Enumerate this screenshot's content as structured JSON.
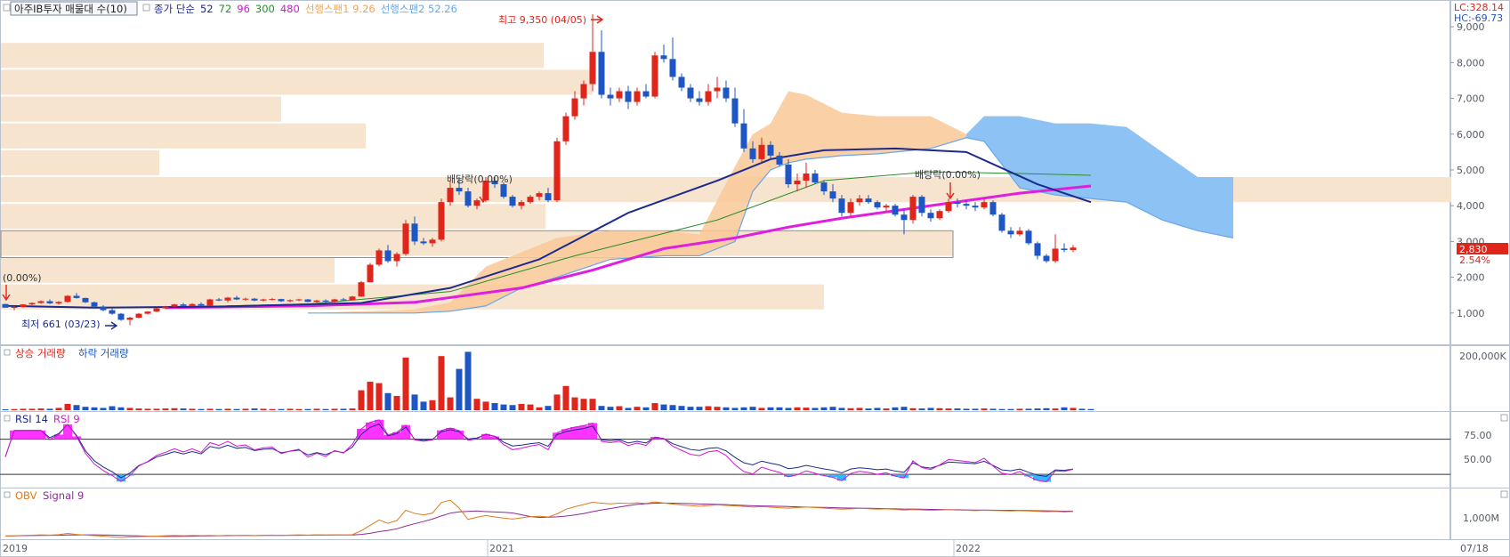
{
  "header": {
    "title_button": "아주IB투자 매물대 수(10)",
    "items": [
      {
        "text": "종가 단순",
        "color": "#1b2a8c"
      },
      {
        "text": "52",
        "color": "#1b2a8c"
      },
      {
        "text": "72",
        "color": "#2e8b2e"
      },
      {
        "text": "96",
        "color": "#d416d4"
      },
      {
        "text": "300",
        "color": "#2e8b2e"
      },
      {
        "text": "480",
        "color": "#d416d4"
      },
      {
        "text": "선행스팬1 9.26",
        "color": "#f2a65a"
      },
      {
        "text": "선행스팬2 52.26",
        "color": "#6aa6e8"
      }
    ],
    "lc": "LC:328.14",
    "hc": "HC:-69.73"
  },
  "annotations": {
    "high": "최고 9,350 (04/05)",
    "low": "최저 661 (03/23)",
    "dividend1": "배당락(0.00%)",
    "dividend2": "배당락(0.00%)",
    "dividend0": "(0.00%)"
  },
  "price_axis": {
    "ticks": [
      "9,000",
      "8,000",
      "7,000",
      "6,000",
      "5,000",
      "4,000",
      "3,000",
      "2,000",
      "1,000"
    ],
    "current_price": "2,830",
    "current_change": "2.54%"
  },
  "volume_panel": {
    "legend_up": "상승 거래량",
    "legend_down": "하락 거래량",
    "tick": "200,000K"
  },
  "rsi_panel": {
    "legend_a": "RSI 14",
    "legend_b": "RSI 9",
    "ticks": [
      "75.00",
      "50.00"
    ]
  },
  "obv_panel": {
    "legend_a": "OBV",
    "legend_b": "Signal 9",
    "tick": "1,000M"
  },
  "time_axis": {
    "labels": [
      "2019",
      "2021",
      "2022"
    ],
    "end_date": "07/18"
  },
  "colors": {
    "up": "#e0251b",
    "down": "#1e56c4",
    "ma_blue": "#1b2a8c",
    "ma_magenta": "#e01ee0",
    "ma_green": "#2e8b2e",
    "span1": "#f9c997",
    "span2": "#8cc3f4",
    "profile": "#f6e4cf"
  },
  "chart_data": {
    "type": "candlestick",
    "title": "아주IB투자",
    "date_range": [
      "2019",
      "2022-07-18"
    ],
    "y_range": [
      0,
      9600
    ],
    "high": {
      "value": 9350,
      "date": "04/05"
    },
    "low": {
      "value": 661,
      "date": "03/23"
    },
    "last_close": 2830,
    "last_change_pct": 2.54,
    "candles": [
      [
        1250,
        1260,
        1150,
        1150
      ],
      [
        1150,
        1200,
        1080,
        1170
      ],
      [
        1170,
        1250,
        1150,
        1240
      ],
      [
        1240,
        1300,
        1220,
        1280
      ],
      [
        1280,
        1350,
        1260,
        1330
      ],
      [
        1330,
        1380,
        1250,
        1270
      ],
      [
        1270,
        1330,
        1230,
        1310
      ],
      [
        1310,
        1500,
        1290,
        1480
      ],
      [
        1480,
        1560,
        1400,
        1420
      ],
      [
        1420,
        1430,
        1280,
        1300
      ],
      [
        1300,
        1320,
        1150,
        1180
      ],
      [
        1180,
        1220,
        1050,
        1080
      ],
      [
        1080,
        1120,
        950,
        980
      ],
      [
        980,
        1000,
        780,
        810
      ],
      [
        810,
        900,
        661,
        870
      ],
      [
        870,
        1000,
        850,
        980
      ],
      [
        980,
        1050,
        960,
        1040
      ],
      [
        1040,
        1150,
        1020,
        1130
      ],
      [
        1130,
        1200,
        1110,
        1180
      ],
      [
        1180,
        1260,
        1150,
        1240
      ],
      [
        1240,
        1280,
        1180,
        1200
      ],
      [
        1200,
        1270,
        1180,
        1250
      ],
      [
        1250,
        1300,
        1180,
        1210
      ],
      [
        1210,
        1400,
        1200,
        1380
      ],
      [
        1380,
        1420,
        1330,
        1350
      ],
      [
        1350,
        1450,
        1300,
        1430
      ],
      [
        1430,
        1480,
        1360,
        1380
      ],
      [
        1380,
        1430,
        1340,
        1400
      ],
      [
        1400,
        1420,
        1330,
        1350
      ],
      [
        1350,
        1400,
        1320,
        1380
      ],
      [
        1380,
        1420,
        1350,
        1390
      ],
      [
        1390,
        1400,
        1310,
        1330
      ],
      [
        1330,
        1380,
        1300,
        1360
      ],
      [
        1360,
        1400,
        1330,
        1380
      ],
      [
        1380,
        1390,
        1300,
        1310
      ],
      [
        1310,
        1370,
        1290,
        1350
      ],
      [
        1350,
        1380,
        1300,
        1320
      ],
      [
        1320,
        1400,
        1300,
        1380
      ],
      [
        1380,
        1420,
        1340,
        1360
      ],
      [
        1360,
        1480,
        1350,
        1460
      ],
      [
        1460,
        1900,
        1450,
        1860
      ],
      [
        1860,
        2400,
        1850,
        2350
      ],
      [
        2350,
        2800,
        2300,
        2750
      ],
      [
        2750,
        2900,
        2400,
        2450
      ],
      [
        2450,
        2700,
        2300,
        2650
      ],
      [
        2650,
        3600,
        2600,
        3500
      ],
      [
        3500,
        3700,
        2900,
        3000
      ],
      [
        3000,
        3100,
        2900,
        2950
      ],
      [
        2950,
        3100,
        2850,
        3050
      ],
      [
        3050,
        4200,
        3000,
        4100
      ],
      [
        4100,
        4700,
        4000,
        4500
      ],
      [
        4500,
        4800,
        4300,
        4400
      ],
      [
        4400,
        4500,
        3950,
        4000
      ],
      [
        4000,
        4200,
        3900,
        4150
      ],
      [
        4150,
        4800,
        4100,
        4700
      ],
      [
        4700,
        4800,
        4500,
        4600
      ],
      [
        4600,
        4650,
        4200,
        4250
      ],
      [
        4250,
        4300,
        3950,
        4000
      ],
      [
        4000,
        4150,
        3900,
        4100
      ],
      [
        4100,
        4300,
        4050,
        4250
      ],
      [
        4250,
        4400,
        4150,
        4350
      ],
      [
        4350,
        4500,
        4100,
        4150
      ],
      [
        4150,
        5900,
        4100,
        5800
      ],
      [
        5800,
        6600,
        5700,
        6500
      ],
      [
        6500,
        7200,
        6400,
        7000
      ],
      [
        7000,
        7500,
        6800,
        7400
      ],
      [
        7400,
        9350,
        7200,
        8300
      ],
      [
        8300,
        8900,
        7000,
        7100
      ],
      [
        7100,
        7300,
        6800,
        7000
      ],
      [
        7000,
        7300,
        6900,
        7200
      ],
      [
        7200,
        7350,
        6700,
        6900
      ],
      [
        6900,
        7300,
        6800,
        7200
      ],
      [
        7200,
        7400,
        7000,
        7050
      ],
      [
        7050,
        8300,
        7000,
        8200
      ],
      [
        8200,
        8500,
        8000,
        8100
      ],
      [
        8100,
        8700,
        7500,
        7600
      ],
      [
        7600,
        7700,
        7200,
        7300
      ],
      [
        7300,
        7400,
        6900,
        7000
      ],
      [
        7000,
        7200,
        6800,
        6900
      ],
      [
        6900,
        7400,
        6800,
        7200
      ],
      [
        7200,
        7600,
        7000,
        7300
      ],
      [
        7300,
        7500,
        6900,
        7000
      ],
      [
        7000,
        7300,
        6200,
        6300
      ],
      [
        6300,
        6700,
        5500,
        5600
      ],
      [
        5600,
        5800,
        5200,
        5300
      ],
      [
        5300,
        5900,
        5200,
        5700
      ],
      [
        5700,
        5800,
        5300,
        5400
      ],
      [
        5400,
        5500,
        5100,
        5150
      ],
      [
        5150,
        5300,
        4500,
        4600
      ],
      [
        4600,
        4900,
        4400,
        4700
      ],
      [
        4700,
        5200,
        4500,
        4900
      ],
      [
        4900,
        5000,
        4600,
        4650
      ],
      [
        4650,
        4700,
        4300,
        4400
      ],
      [
        4400,
        4600,
        4100,
        4200
      ],
      [
        4200,
        4300,
        3700,
        3800
      ],
      [
        3800,
        4200,
        3700,
        4100
      ],
      [
        4100,
        4300,
        4000,
        4200
      ],
      [
        4200,
        4300,
        4050,
        4100
      ],
      [
        4100,
        4150,
        3900,
        3950
      ],
      [
        3950,
        4050,
        3850,
        4000
      ],
      [
        4000,
        4050,
        3700,
        3750
      ],
      [
        3750,
        3900,
        3200,
        3600
      ],
      [
        3600,
        4300,
        3500,
        4250
      ],
      [
        4250,
        4300,
        3700,
        3800
      ],
      [
        3800,
        3900,
        3550,
        3650
      ],
      [
        3650,
        3900,
        3600,
        3850
      ],
      [
        3850,
        4200,
        3800,
        4100
      ],
      [
        4100,
        4200,
        3950,
        4050
      ],
      [
        4050,
        4150,
        3900,
        4000
      ],
      [
        4000,
        4100,
        3850,
        3950
      ],
      [
        3950,
        4200,
        3900,
        4100
      ],
      [
        4100,
        4150,
        3700,
        3750
      ],
      [
        3750,
        3800,
        3250,
        3300
      ],
      [
        3300,
        3400,
        3100,
        3200
      ],
      [
        3200,
        3400,
        3150,
        3300
      ],
      [
        3300,
        3350,
        2900,
        2950
      ],
      [
        2950,
        3000,
        2500,
        2600
      ],
      [
        2600,
        2650,
        2400,
        2450
      ],
      [
        2450,
        3200,
        2400,
        2800
      ],
      [
        2800,
        2950,
        2700,
        2760
      ],
      [
        2760,
        2900,
        2700,
        2830
      ]
    ],
    "ma_blue": [
      [
        0,
        1200
      ],
      [
        10,
        1150
      ],
      [
        24,
        1180
      ],
      [
        40,
        1280
      ],
      [
        50,
        1700
      ],
      [
        60,
        2500
      ],
      [
        70,
        3800
      ],
      [
        80,
        4700
      ],
      [
        86,
        5300
      ],
      [
        92,
        5550
      ],
      [
        100,
        5600
      ],
      [
        108,
        5500
      ],
      [
        116,
        4600
      ],
      [
        122,
        4100
      ]
    ],
    "ma_magenta": [
      [
        18,
        1150
      ],
      [
        34,
        1200
      ],
      [
        46,
        1300
      ],
      [
        58,
        1700
      ],
      [
        66,
        2200
      ],
      [
        74,
        2800
      ],
      [
        82,
        3100
      ],
      [
        88,
        3400
      ],
      [
        94,
        3650
      ],
      [
        104,
        4000
      ],
      [
        114,
        4350
      ],
      [
        122,
        4550
      ]
    ],
    "ma_green": [
      [
        16,
        1150
      ],
      [
        34,
        1250
      ],
      [
        50,
        1600
      ],
      [
        64,
        2600
      ],
      [
        80,
        3600
      ],
      [
        92,
        4700
      ],
      [
        104,
        4950
      ],
      [
        114,
        4900
      ],
      [
        122,
        4850
      ]
    ],
    "cloud": [
      [
        34,
        1000,
        1000
      ],
      [
        46,
        1100,
        1000
      ],
      [
        50,
        1300,
        1050
      ],
      [
        54,
        2300,
        1200
      ],
      [
        58,
        2700,
        1700
      ],
      [
        62,
        3100,
        2000
      ],
      [
        68,
        3300,
        2500
      ],
      [
        74,
        3300,
        2600
      ],
      [
        78,
        3200,
        2600
      ],
      [
        82,
        5100,
        3000
      ],
      [
        84,
        6000,
        4400
      ],
      [
        86,
        6300,
        5000
      ],
      [
        88,
        7200,
        5200
      ],
      [
        90,
        7100,
        5300
      ],
      [
        94,
        6600,
        5400
      ],
      [
        98,
        6500,
        5450
      ],
      [
        104,
        6500,
        5600
      ],
      [
        108,
        6000,
        5900
      ],
      [
        110,
        6500,
        5800
      ],
      [
        114,
        6500,
        4500
      ],
      [
        118,
        6300,
        4300
      ],
      [
        122,
        6300,
        4200
      ],
      [
        126,
        6200,
        4100
      ],
      [
        130,
        5500,
        3600
      ],
      [
        134,
        4800,
        3300
      ],
      [
        138,
        4800,
        3100
      ]
    ],
    "volume": [
      3,
      4,
      5,
      5,
      6,
      5,
      8,
      22,
      18,
      12,
      10,
      8,
      14,
      10,
      8,
      6,
      5,
      5,
      6,
      7,
      6,
      5,
      4,
      5,
      4,
      5,
      4,
      5,
      6,
      5,
      4,
      4,
      5,
      4,
      4,
      5,
      4,
      5,
      5,
      6,
      70,
      100,
      95,
      60,
      50,
      185,
      55,
      30,
      35,
      190,
      45,
      145,
      205,
      40,
      30,
      25,
      20,
      18,
      22,
      20,
      10,
      15,
      55,
      85,
      45,
      40,
      40,
      15,
      12,
      14,
      8,
      12,
      10,
      25,
      20,
      18,
      15,
      12,
      12,
      14,
      12,
      10,
      8,
      10,
      12,
      8,
      10,
      10,
      8,
      10,
      9,
      8,
      10,
      12,
      8,
      7,
      8,
      6,
      8,
      6,
      10,
      12,
      7,
      6,
      8,
      7,
      6,
      6,
      5,
      5,
      6,
      5,
      4,
      4,
      5,
      5,
      6,
      7,
      6,
      10,
      8,
      5,
      4
    ],
    "rsi_range": [
      15,
      100
    ]
  }
}
